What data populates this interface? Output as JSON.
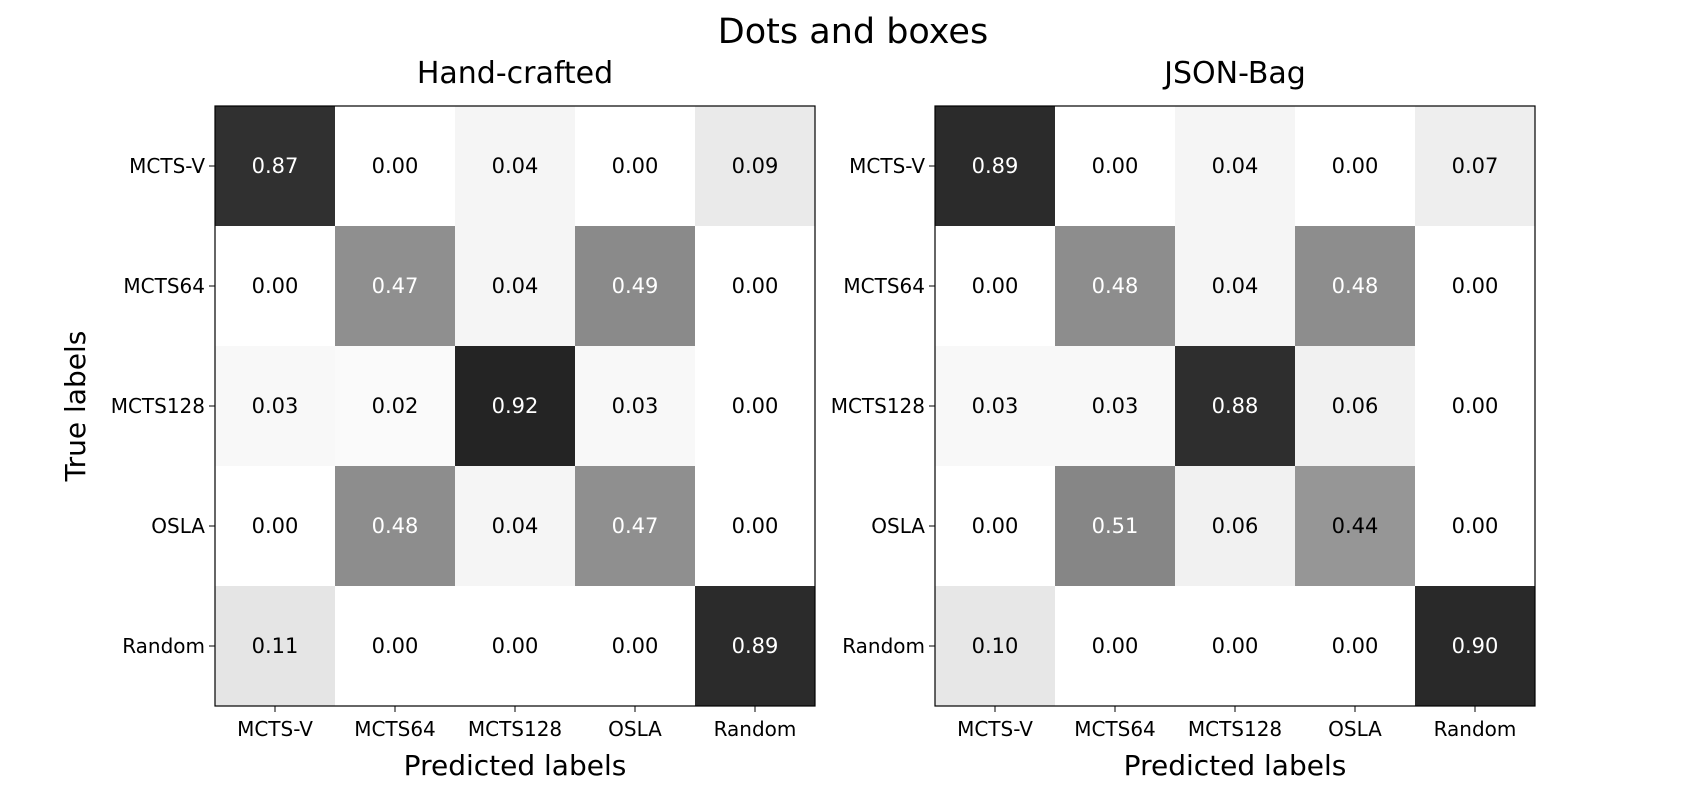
{
  "figure": {
    "title": "Dots and boxes"
  },
  "chart_data": [
    {
      "type": "heatmap",
      "title": "Hand-crafted",
      "xlabel": "Predicted labels",
      "ylabel": "True labels",
      "x_categories": [
        "MCTS-V",
        "MCTS64",
        "MCTS128",
        "OSLA",
        "Random"
      ],
      "y_categories": [
        "MCTS-V",
        "MCTS64",
        "MCTS128",
        "OSLA",
        "Random"
      ],
      "values": [
        [
          0.87,
          0.0,
          0.04,
          0.0,
          0.09
        ],
        [
          0.0,
          0.47,
          0.04,
          0.49,
          0.0
        ],
        [
          0.03,
          0.02,
          0.92,
          0.03,
          0.0
        ],
        [
          0.0,
          0.48,
          0.04,
          0.47,
          0.0
        ],
        [
          0.11,
          0.0,
          0.0,
          0.0,
          0.89
        ]
      ],
      "colormap": "Greys",
      "value_range": [
        0,
        1
      ]
    },
    {
      "type": "heatmap",
      "title": "JSON-Bag",
      "xlabel": "Predicted labels",
      "ylabel": "",
      "x_categories": [
        "MCTS-V",
        "MCTS64",
        "MCTS128",
        "OSLA",
        "Random"
      ],
      "y_categories": [
        "MCTS-V",
        "MCTS64",
        "MCTS128",
        "OSLA",
        "Random"
      ],
      "values": [
        [
          0.89,
          0.0,
          0.04,
          0.0,
          0.07
        ],
        [
          0.0,
          0.48,
          0.04,
          0.48,
          0.0
        ],
        [
          0.03,
          0.03,
          0.88,
          0.06,
          0.0
        ],
        [
          0.0,
          0.51,
          0.06,
          0.44,
          0.0
        ],
        [
          0.1,
          0.0,
          0.0,
          0.0,
          0.9
        ]
      ],
      "colormap": "Greys",
      "value_range": [
        0,
        1
      ]
    }
  ]
}
